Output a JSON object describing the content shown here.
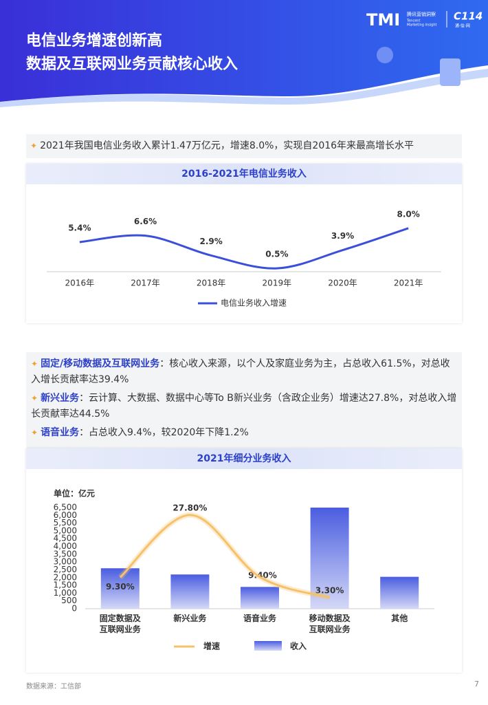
{
  "header": {
    "title_lines": [
      "电信业务增速创新高",
      "数据及互联网业务贡献核心收入"
    ],
    "logo": {
      "mark": "TMI",
      "cn": "腾讯营销洞察",
      "en1": "Tencent",
      "en2": "Marketing Insight",
      "partner": "C114",
      "partner_sub": "通·信·网"
    }
  },
  "summary": "2021年我国电信业务收入累计1.47万亿元，增速8.0%，实现自2016年来最高增长水平",
  "bullets": [
    {
      "label": "固定/移动数据及互联网业务",
      "text": "：核心收入来源，以个人及家庭业务为主，占总收入61.5%，对总收入增长贡献率达39.4%"
    },
    {
      "label": "新兴业务",
      "text": "：云计算、大数据、数据中心等To B新兴业务（含政企业务）增速达27.8%，对总收入增长贡献率达44.5%"
    },
    {
      "label": "语音业务",
      "text": "：占总收入9.4%，较2020年下降1.2%"
    }
  ],
  "chart_data": [
    {
      "type": "line",
      "title": "2016-2021年电信业务收入",
      "categories": [
        "2016年",
        "2017年",
        "2018年",
        "2019年",
        "2020年",
        "2021年"
      ],
      "series": [
        {
          "name": "电信业务收入增速",
          "color": "#3b4fd8",
          "values": [
            5.4,
            6.6,
            2.9,
            0.5,
            3.9,
            8.0
          ],
          "value_labels": [
            "5.4%",
            "6.6%",
            "2.9%",
            "0.5%",
            "3.9%",
            "8.0%"
          ]
        }
      ],
      "ylim": [
        0,
        9
      ]
    },
    {
      "type": "bar_line",
      "title": "2021年细分业务收入",
      "unit_label": "单位：亿元",
      "categories": [
        "固定数据及\n互联网业务",
        "新兴业务",
        "语音业务",
        "移动数据及\n互联网业务",
        "其他"
      ],
      "series": [
        {
          "name": "收入",
          "type": "bar",
          "color": "#4a5de0",
          "values": [
            2600,
            2200,
            1400,
            6500,
            2050
          ]
        },
        {
          "name": "增速",
          "type": "line",
          "axis": "y2",
          "color": "#f5c26b",
          "values": [
            9.3,
            27.8,
            9.4,
            3.3,
            null
          ],
          "value_labels": [
            "9.30%",
            "27.80%",
            "9.40%",
            "3.30%",
            null
          ]
        }
      ],
      "ylim": [
        0,
        6500
      ],
      "yticks": [
        0,
        500,
        {
          "value": 1000,
          "label": "1,000"
        },
        {
          "value": 1500,
          "label": "1,500"
        },
        {
          "value": 2000,
          "label": "2,000"
        },
        {
          "value": 2500,
          "label": "2,500"
        },
        {
          "value": 3000,
          "label": "3,000"
        },
        {
          "value": 3500,
          "label": "3,500"
        },
        {
          "value": 4000,
          "label": "4,000"
        },
        {
          "value": 4500,
          "label": "4,500"
        },
        {
          "value": 5000,
          "label": "5,000"
        },
        {
          "value": 5500,
          "label": "5,500"
        },
        {
          "value": 6000,
          "label": "6,000"
        },
        {
          "value": 6500,
          "label": "6,500"
        }
      ],
      "y2lim": [
        0,
        30
      ]
    }
  ],
  "footer": {
    "source": "数据来源：工信部",
    "page": "7"
  }
}
